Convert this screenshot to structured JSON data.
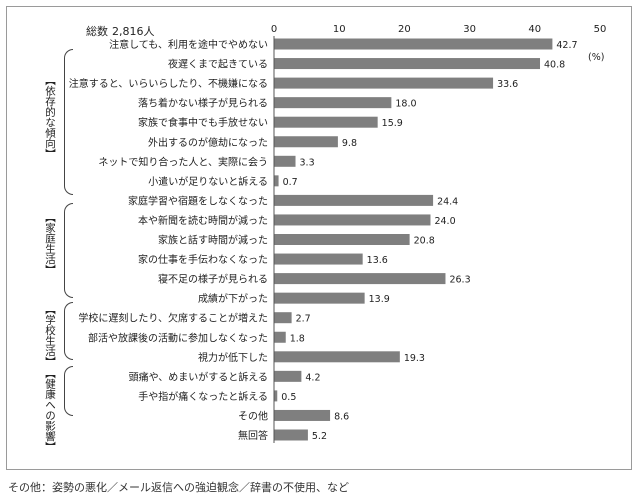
{
  "total_label": "総数",
  "total_value": "2,816人",
  "note": "その他：姿勢の悪化／メール返信への強迫観念／辞書の不使用、など",
  "groups": [
    {
      "label": "【依存的な傾向】"
    },
    {
      "label": "【家庭生活】"
    },
    {
      "label": "【学校生活】"
    },
    {
      "label": "【健康への影響】"
    }
  ],
  "chart_data": {
    "type": "bar",
    "orientation": "horizontal",
    "unit": "(%)",
    "xlim": [
      0,
      50
    ],
    "ticks": [
      0,
      10,
      20,
      30,
      40,
      50
    ],
    "categories": [
      "注意しても、利用を途中でやめない",
      "夜遅くまで起きている",
      "注意すると、いらいらしたり、不機嫌になる",
      "落ち着かない様子が見られる",
      "家族で食事中でも手放せない",
      "外出するのが億劫になった",
      "ネットで知り合った人と、実際に会う",
      "小遣いが足りないと訴える",
      "家庭学習や宿題をしなくなった",
      "本や新聞を読む時間が減った",
      "家族と話す時間が減った",
      "家の仕事を手伝わなくなった",
      "寝不足の様子が見られる",
      "成績が下がった",
      "学校に遅刻したり、欠席することが増えた",
      "部活や放課後の活動に参加しなくなった",
      "視力が低下した",
      "頭痛や、めまいがすると訴える",
      "手や指が痛くなったと訴える",
      "その他",
      "無回答"
    ],
    "values": [
      42.7,
      40.8,
      33.6,
      18.0,
      15.9,
      9.8,
      3.3,
      0.7,
      24.4,
      24.0,
      20.8,
      13.6,
      26.3,
      13.9,
      2.7,
      1.8,
      19.3,
      4.2,
      0.5,
      8.6,
      5.2
    ],
    "value_labels": [
      "42.7",
      "40.8",
      "33.6",
      "18.0",
      "15.9",
      "9.8",
      "3.3",
      "0.7",
      "24.4",
      "24.0",
      "20.8",
      "13.6",
      "26.3",
      "13.9",
      "2.7",
      "1.8",
      "19.3",
      "4.2",
      "0.5",
      "8.6",
      "5.2"
    ],
    "bar_color": "#7f7f7f",
    "grid": false
  }
}
